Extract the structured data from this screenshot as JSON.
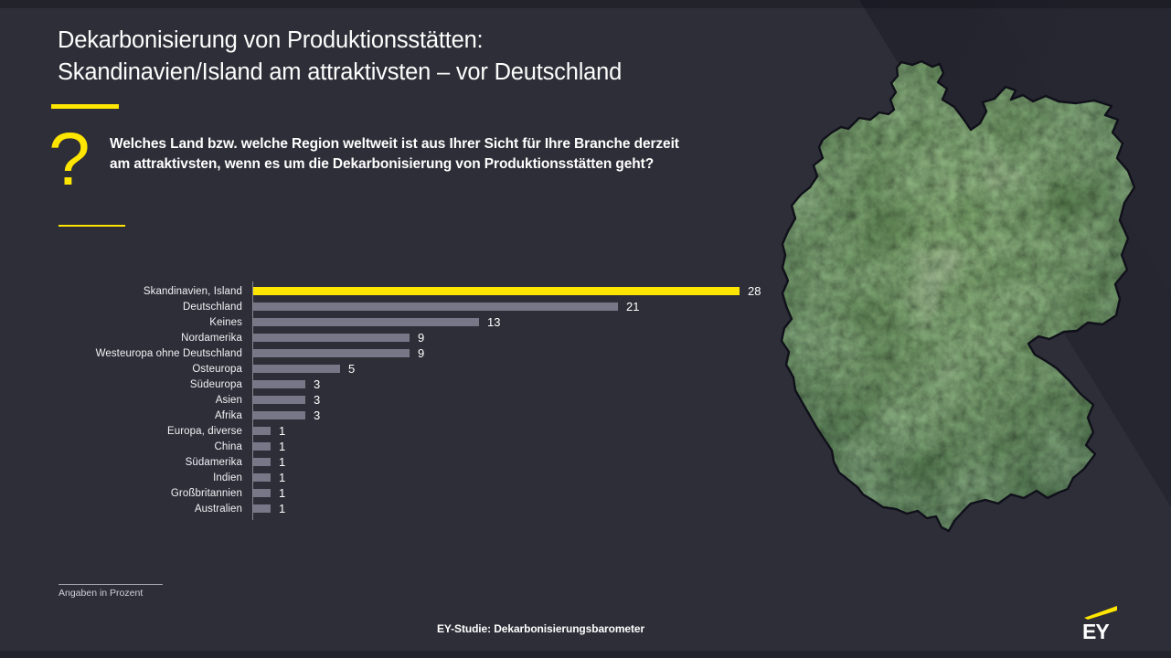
{
  "slide": {
    "title_line1": "Dekarbonisierung von Produktionsstätten:",
    "title_line2": "Skandinavien/Island am attraktivsten – vor Deutschland",
    "question_mark": "?",
    "question": "Welches Land bzw. welche Region weltweit ist aus Ihrer Sicht für Ihre Branche derzeit am attraktivsten, wenn es um die Dekarbonisierung von Produktionsstätten geht?",
    "footnote": "Angaben in Prozent",
    "footer": "EY-Studie: Dekarbonisierungsbarometer",
    "logo_text": "EY"
  },
  "chart_data": {
    "type": "bar",
    "orientation": "horizontal",
    "title": "",
    "categories": [
      "Skandinavien, Island",
      "Deutschland",
      "Keines",
      "Nordamerika",
      "Westeuropa ohne Deutschland",
      "Osteuropa",
      "Südeuropa",
      "Asien",
      "Afrika",
      "Europa, diverse",
      "China",
      "Südamerika",
      "Indien",
      "Großbritannien",
      "Australien"
    ],
    "values": [
      28,
      21,
      13,
      9,
      9,
      5,
      3,
      3,
      3,
      1,
      1,
      1,
      1,
      1,
      1
    ],
    "unit_note": "Angaben in Prozent",
    "xlim": [
      0,
      28
    ],
    "grid": false,
    "highlight_index": 0,
    "highlight_color": "#ffe600",
    "bar_color": "#777788",
    "value_label_color": "#ffffff"
  },
  "colors": {
    "background": "#2e2e38",
    "accent_yellow": "#ffe600",
    "corner_dark": "#1f1f28",
    "text": "#ffffff"
  }
}
